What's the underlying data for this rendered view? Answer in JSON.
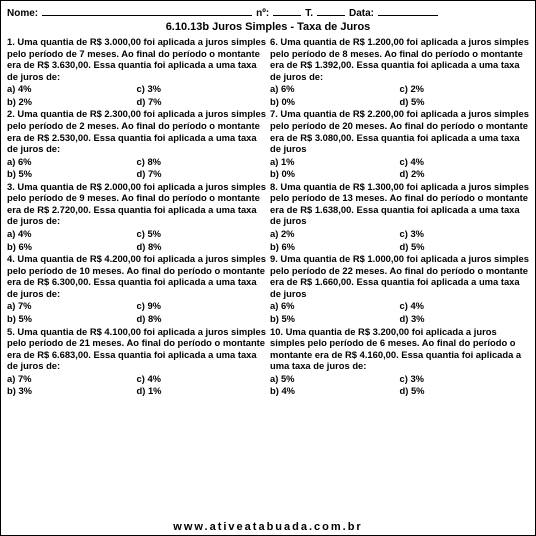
{
  "colors": {
    "text": "#000000",
    "bg": "#ffffff"
  },
  "header": {
    "name_label": "Nome:",
    "no_label": "nº:",
    "t_label": "T.",
    "date_label": "Data:"
  },
  "title": "6.10.13b Juros Simples - Taxa de Juros",
  "questions_left": [
    {
      "stem": "1. Uma quantia de R$ 3.000,00 foi aplicada a juros simples pelo período de 7 meses. Ao final do período o montante era de R$ 3.630,00. Essa quantia foi aplicada a uma taxa de juros de:",
      "opts": [
        "a) 4%",
        "c) 3%",
        "b) 2%",
        "d) 7%"
      ]
    },
    {
      "stem": "2. Uma quantia de R$ 2.300,00 foi aplicada a juros simples pelo período de 2 meses. Ao final do período o montante era de R$ 2.530,00. Essa quantia foi aplicada a uma taxa de juros de:",
      "opts": [
        "a) 6%",
        "c) 8%",
        "b) 5%",
        "d) 7%"
      ]
    },
    {
      "stem": "3. Uma quantia de R$ 2.000,00 foi aplicada a juros simples pelo período de 9 meses. Ao final do período o montante era de R$ 2.720,00. Essa quantia foi aplicada a uma taxa de juros de:",
      "opts": [
        "a) 4%",
        "c) 5%",
        "b) 6%",
        "d) 8%"
      ]
    },
    {
      "stem": "4. Uma quantia de R$ 4.200,00 foi aplicada a juros simples pelo período de 10 meses. Ao final do período o montante era de R$ 6.300,00. Essa quantia foi aplicada a uma taxa de juros de:",
      "opts": [
        "a) 7%",
        "c) 9%",
        "b) 5%",
        "d) 8%"
      ]
    },
    {
      "stem": "5. Uma quantia de R$ 4.100,00 foi aplicada a juros simples pelo período de 21 meses. Ao final do período o montante era de R$ 6.683,00. Essa quantia foi aplicada a uma taxa de juros de:",
      "opts": [
        "a) 7%",
        "c) 4%",
        "b) 3%",
        "d) 1%"
      ]
    }
  ],
  "questions_right": [
    {
      "stem": "6. Uma quantia de R$ 1.200,00 foi aplicada a juros simples pelo período de 8 meses. Ao final do período o montante era de R$ 1.392,00. Essa quantia foi aplicada a uma taxa de juros de:",
      "opts": [
        "a) 6%",
        "c) 2%",
        "b) 0%",
        "d) 5%"
      ]
    },
    {
      "stem": "7. Uma quantia de R$ 2.200,00 foi aplicada a juros simples pelo período de 20 meses. Ao final do período o montante era de R$ 3.080,00. Essa quantia foi aplicada a uma taxa de juros",
      "opts": [
        "a) 1%",
        "c) 4%",
        "b) 0%",
        "d) 2%"
      ]
    },
    {
      "stem": "8. Uma quantia de R$ 1.300,00 foi aplicada a juros simples pelo período de 13 meses. Ao final do período o montante era de R$ 1.638,00. Essa quantia foi aplicada a uma taxa de juros",
      "opts": [
        "a) 2%",
        "c) 3%",
        "b) 6%",
        "d) 5%"
      ]
    },
    {
      "stem": "9. Uma quantia de R$ 1.000,00 foi aplicada a juros simples pelo período de 22 meses. Ao final do período o montante era de R$ 1.660,00. Essa quantia foi aplicada a uma taxa de juros",
      "opts": [
        "a) 6%",
        "c) 4%",
        "b) 5%",
        "d) 3%"
      ]
    },
    {
      "stem": "10. Uma quantia de R$ 3.200,00 foi aplicada a juros simples pelo período de 6 meses. Ao final do período o montante era de R$ 4.160,00. Essa quantia foi aplicada a uma taxa de juros de:",
      "opts": [
        "a) 5%",
        "c) 3%",
        "b) 4%",
        "d) 5%"
      ]
    }
  ],
  "footer": "www.ativeatabuada.com.br"
}
